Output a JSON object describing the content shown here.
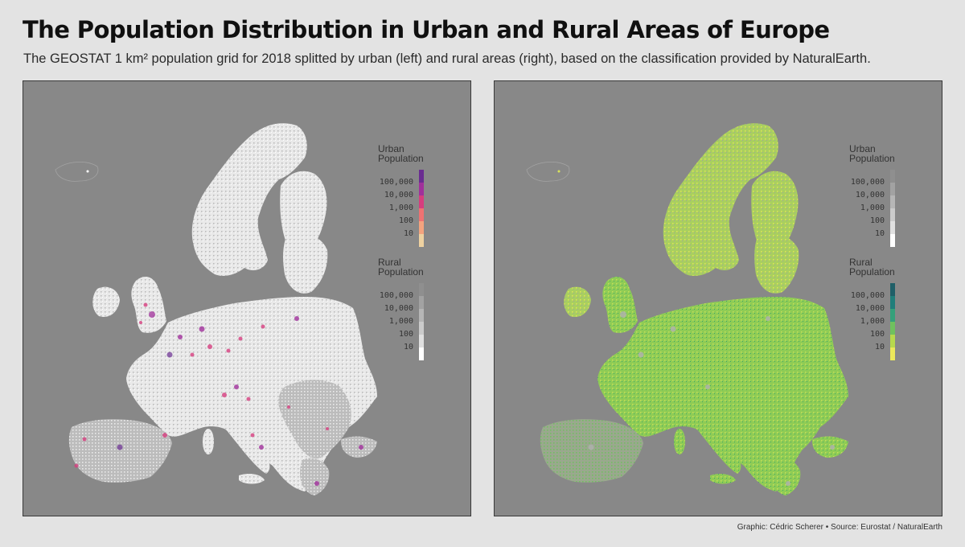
{
  "title": "The Population Distribution in Urban and Rural Areas of Europe",
  "subtitle": "The GEOSTAT 1 km² population grid for 2018 splitted by urban (left) and rural areas (right), based on the classification provided by NaturalEarth.",
  "caption": "Graphic: Cédric Scherer • Source: Eurostat / NaturalEarth",
  "colors": {
    "background": "#e3e3e3",
    "sea": "#888888",
    "land_light": "#f0f0f0",
    "land_gray": "#a8a8a8"
  },
  "panels": [
    {
      "id": "urban-map",
      "legends": [
        {
          "title_line1": "Urban",
          "title_line2": "Population",
          "ticks": [
            "100,000",
            "10,000",
            "1,000",
            "100",
            "10"
          ],
          "colors": [
            "#6a2c91",
            "#a0309b",
            "#d63d7e",
            "#ee7272",
            "#f4a37e",
            "#eed1a0"
          ]
        },
        {
          "title_line1": "Rural",
          "title_line2": "Population",
          "ticks": [
            "100,000",
            "10,000",
            "1,000",
            "100",
            "10"
          ],
          "colors": [
            "#8f8f8f",
            "#a2a2a2",
            "#b6b6b6",
            "#cbcbcb",
            "#e0e0e0",
            "#ffffff"
          ]
        }
      ]
    },
    {
      "id": "rural-map",
      "legends": [
        {
          "title_line1": "Urban",
          "title_line2": "Population",
          "ticks": [
            "100,000",
            "10,000",
            "1,000",
            "100",
            "10"
          ],
          "colors": [
            "#8f8f8f",
            "#a2a2a2",
            "#b6b6b6",
            "#cbcbcb",
            "#e0e0e0",
            "#ffffff"
          ]
        },
        {
          "title_line1": "Rural",
          "title_line2": "Population",
          "ticks": [
            "100,000",
            "10,000",
            "1,000",
            "100",
            "10"
          ],
          "colors": [
            "#1f5f68",
            "#207e7a",
            "#35a07a",
            "#6fc15e",
            "#b7d94d",
            "#ece85a"
          ]
        }
      ]
    }
  ]
}
